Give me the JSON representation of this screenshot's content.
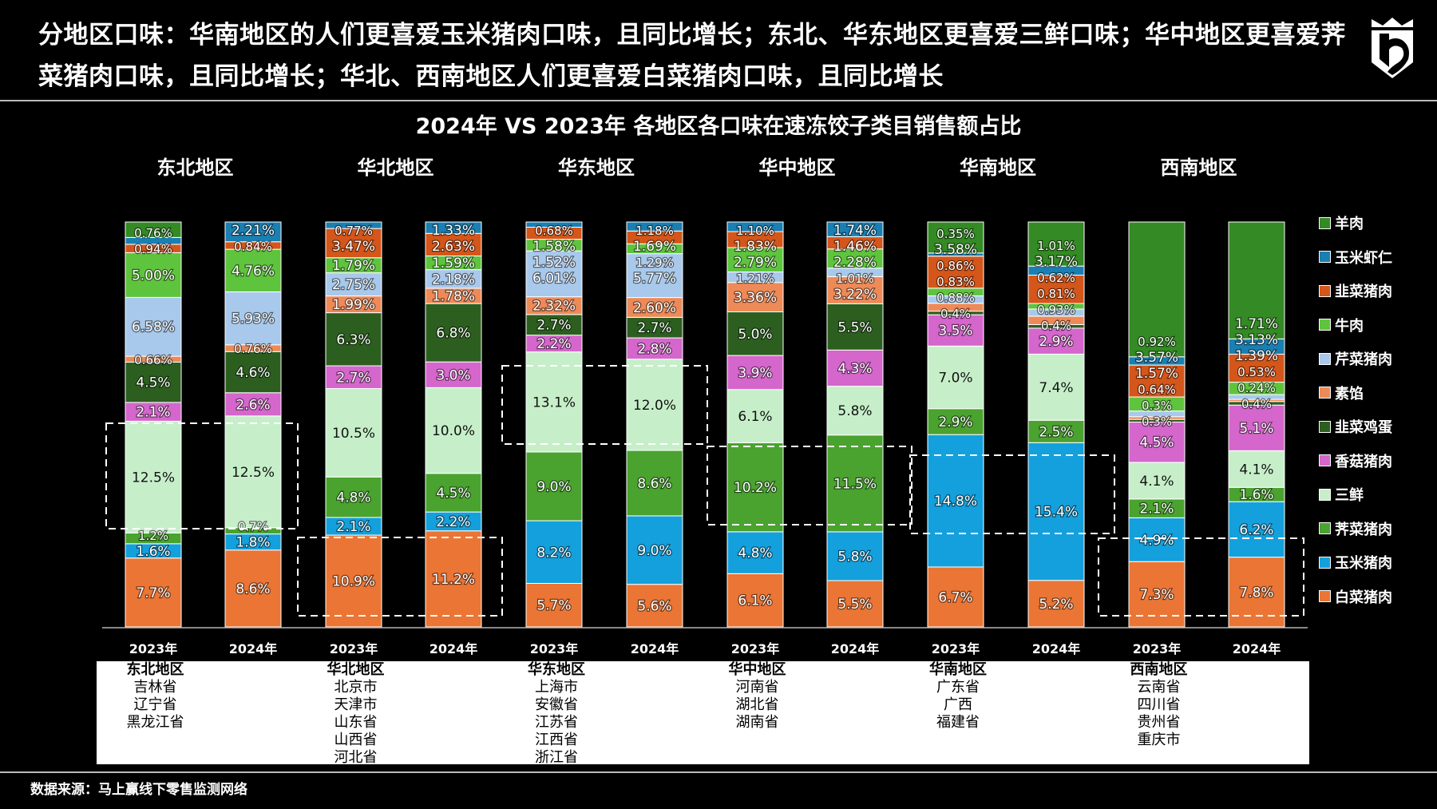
{
  "headline": "分地区口味：华南地区的人们更喜爱玉米猪肉口味，且同比增长；东北、华东地区更喜爱三鲜口味；华中地区更喜爱荠菜猪肉口味，且同比增长；华北、西南地区人们更喜爱白菜猪肉口味，且同比增长",
  "logo": "shield-crown-5-logo",
  "source": "数据来源：马上赢线下零售监测网络",
  "chart_data": {
    "type": "bar",
    "stacked": true,
    "title": "2024年 VS 2023年 各地区各口味在速冻饺子类目销售额占比",
    "unit": "%",
    "legend_position": "right",
    "grid": false,
    "regions": [
      "东北地区",
      "华北地区",
      "华东地区",
      "华中地区",
      "华南地区",
      "西南地区"
    ],
    "years": [
      "2023年",
      "2024年"
    ],
    "legend": [
      "羊肉",
      "玉米虾仁",
      "韭菜猪肉",
      "牛肉",
      "芹菜猪肉",
      "素馅",
      "韭菜鸡蛋",
      "香菇猪肉",
      "三鲜",
      "荠菜猪肉",
      "玉米猪肉",
      "白菜猪肉"
    ],
    "stack_order_bottom_to_top": [
      "白菜猪肉",
      "玉米猪肉",
      "荠菜猪肉",
      "三鲜",
      "香菇猪肉",
      "韭菜鸡蛋",
      "素馅",
      "芹菜猪肉",
      "牛肉",
      "韭菜猪肉",
      "玉米虾仁",
      "羊肉"
    ],
    "colors": {
      "羊肉": "#348a24",
      "玉米虾仁": "#1a7fb2",
      "韭菜猪肉": "#d4561a",
      "牛肉": "#5fc43d",
      "芹菜猪肉": "#a8c9ec",
      "素馅": "#ee8a58",
      "韭菜鸡蛋": "#2c5f1f",
      "香菇猪肉": "#d466cc",
      "三鲜": "#c6efc9",
      "荠菜猪肉": "#4aa22f",
      "玉米猪肉": "#14a0dc",
      "白菜猪肉": "#ea7535"
    },
    "bars": [
      {
        "region": "东北地区",
        "year": "2023年",
        "values": [
          7.7,
          1.6,
          1.2,
          12.5,
          2.1,
          4.5,
          0.66,
          6.58,
          5.0,
          0.94,
          0.76,
          null
        ],
        "labels": [
          "7.7%",
          "1.6%",
          "1.2%",
          "12.5%",
          "2.1%",
          "4.5%",
          "0.66%",
          "6.58%",
          "5.00%",
          "0.94%",
          "0.76%",
          ""
        ]
      },
      {
        "region": "东北地区",
        "year": "2024年",
        "values": [
          8.6,
          1.8,
          0.7,
          12.5,
          2.6,
          4.6,
          0.76,
          5.93,
          4.76,
          0.84,
          2.21,
          null
        ],
        "labels": [
          "8.6%",
          "1.8%",
          "0.7%",
          "12.5%",
          "2.6%",
          "4.6%",
          "0.76%",
          "5.93%",
          "4.76%",
          "0.84%",
          "2.21%",
          ""
        ]
      },
      {
        "region": "华北地区",
        "year": "2023年",
        "values": [
          10.9,
          2.1,
          4.8,
          10.5,
          2.7,
          6.3,
          1.99,
          2.75,
          1.79,
          3.47,
          0.77,
          null
        ],
        "labels": [
          "10.9%",
          "2.1%",
          "4.8%",
          "10.5%",
          "2.7%",
          "6.3%",
          "1.99%",
          "2.75%",
          "1.79%",
          "3.47%",
          "0.77%",
          ""
        ]
      },
      {
        "region": "华北地区",
        "year": "2024年",
        "values": [
          11.2,
          2.2,
          4.5,
          10.0,
          3.0,
          6.8,
          1.78,
          2.18,
          1.59,
          2.63,
          1.33,
          null
        ],
        "labels": [
          "11.2%",
          "2.2%",
          "4.5%",
          "10.0%",
          "3.0%",
          "6.8%",
          "1.78%",
          "2.18%",
          "1.59%",
          "2.63%",
          "1.33%",
          ""
        ]
      },
      {
        "region": "华东地区",
        "year": "2023年",
        "values": [
          5.7,
          8.2,
          9.0,
          13.1,
          2.2,
          2.7,
          2.32,
          6.01,
          1.52,
          1.58,
          0.68,
          null
        ],
        "labels": [
          "5.7%",
          "8.2%",
          "9.0%",
          "13.1%",
          "2.2%",
          "2.7%",
          "2.32%",
          "6.01%",
          "1.52%",
          "1.58%",
          "0.68%",
          ""
        ]
      },
      {
        "region": "华东地区",
        "year": "2024年",
        "values": [
          5.6,
          9.0,
          8.6,
          12.0,
          2.8,
          2.7,
          2.6,
          5.77,
          1.29,
          1.69,
          1.18,
          null
        ],
        "labels": [
          "5.6%",
          "9.0%",
          "8.6%",
          "12.0%",
          "2.8%",
          "2.7%",
          "2.60%",
          "5.77%",
          "1.29%",
          "1.69%",
          "1.18%",
          ""
        ]
      },
      {
        "region": "华中地区",
        "year": "2023年",
        "values": [
          6.1,
          4.8,
          10.2,
          6.1,
          3.9,
          5.0,
          3.36,
          1.21,
          2.79,
          1.83,
          1.1,
          null
        ],
        "labels": [
          "6.1%",
          "4.8%",
          "10.2%",
          "6.1%",
          "3.9%",
          "5.0%",
          "3.36%",
          "1.21%",
          "2.79%",
          "1.83%",
          "1.10%",
          ""
        ]
      },
      {
        "region": "华中地区",
        "year": "2024年",
        "values": [
          5.5,
          5.8,
          11.5,
          5.8,
          4.3,
          5.5,
          3.22,
          1.01,
          2.28,
          1.46,
          1.74,
          null
        ],
        "labels": [
          "5.5%",
          "5.8%",
          "11.5%",
          "5.8%",
          "4.3%",
          "5.5%",
          "3.22%",
          "1.01%",
          "2.28%",
          "1.46%",
          "1.74%",
          ""
        ]
      },
      {
        "region": "华南地区",
        "year": "2023年",
        "values": [
          6.7,
          14.8,
          2.9,
          7.0,
          3.5,
          0.4,
          0.88,
          0.83,
          0.86,
          3.58,
          0.35,
          null
        ],
        "labels": [
          "6.7%",
          "14.8%",
          "2.9%",
          "7.0%",
          "3.5%",
          "0.4%",
          "0.88%",
          "0.83%",
          "0.86%",
          "3.58%",
          "0.35%",
          ""
        ]
      },
      {
        "region": "华南地区",
        "year": "2024年",
        "values": [
          5.2,
          15.4,
          2.5,
          7.4,
          2.9,
          0.4,
          0.93,
          0.81,
          0.62,
          3.17,
          1.01,
          null
        ],
        "labels": [
          "5.2%",
          "15.4%",
          "2.5%",
          "7.4%",
          "2.9%",
          "0.4%",
          "0.93%",
          "0.81%",
          "0.62%",
          "3.17%",
          "1.01%",
          ""
        ]
      },
      {
        "region": "西南地区",
        "year": "2023年",
        "values": [
          7.3,
          4.9,
          2.1,
          4.1,
          4.5,
          0.3,
          0.3,
          0.64,
          1.57,
          3.57,
          0.92,
          null
        ],
        "labels": [
          "7.3%",
          "4.9%",
          "2.1%",
          "4.1%",
          "4.5%",
          "0.3%",
          "0.3%",
          "0.64%",
          "1.57%",
          "3.57%",
          "0.92%",
          ""
        ]
      },
      {
        "region": "西南地区",
        "year": "2024年",
        "values": [
          7.8,
          6.2,
          1.6,
          4.1,
          5.1,
          0.4,
          0.24,
          0.53,
          1.39,
          3.13,
          1.71,
          null
        ],
        "labels": [
          "7.8%",
          "6.2%",
          "1.6%",
          "4.1%",
          "5.1%",
          "0.4%",
          "0.24%",
          "0.53%",
          "1.39%",
          "3.13%",
          "1.71%",
          ""
        ]
      }
    ]
  },
  "region_table": [
    {
      "region": "东北地区",
      "provinces": [
        "吉林省",
        "辽宁省",
        "黑龙江省"
      ]
    },
    {
      "region": "华北地区",
      "provinces": [
        "北京市",
        "天津市",
        "山东省",
        "山西省",
        "河北省"
      ]
    },
    {
      "region": "华东地区",
      "provinces": [
        "上海市",
        "安徽省",
        "江苏省",
        "江西省",
        "浙江省"
      ]
    },
    {
      "region": "华中地区",
      "provinces": [
        "河南省",
        "湖北省",
        "湖南省"
      ]
    },
    {
      "region": "华南地区",
      "provinces": [
        "广东省",
        "广西",
        "福建省"
      ]
    },
    {
      "region": "西南地区",
      "provinces": [
        "云南省",
        "四川省",
        "贵州省",
        "重庆市"
      ]
    }
  ]
}
